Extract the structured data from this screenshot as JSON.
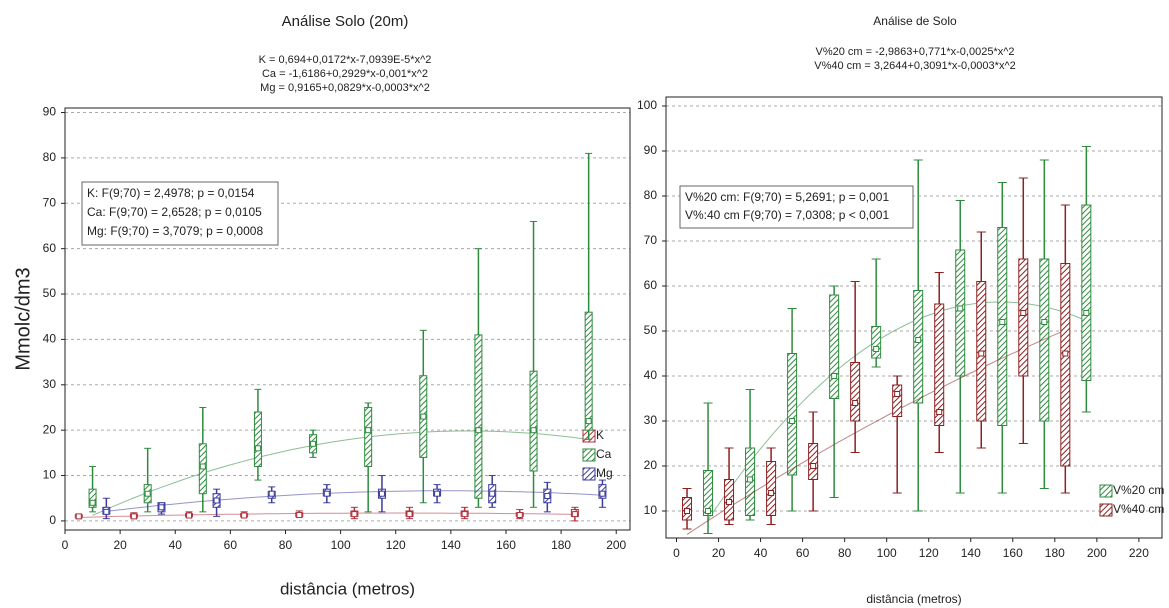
{
  "chart_data": [
    {
      "type": "box",
      "title": "Análise Solo (20m)",
      "subtitle": [
        "K = 0,694+0,0172*x-7,0939E-5*x^2",
        "Ca = -1,6186+0,2929*x-0,001*x^2",
        "Mg = 0,9165+0,0829*x-0,0003*x^2"
      ],
      "annotations": [
        "K:  F(9;70) = 2,4978; p = 0,0154",
        "Ca:  F(9;70) = 2,6528; p = 0,0105",
        "Mg:  F(9;70) = 3,7079; p = 0,0008"
      ],
      "x_label": "distância (metros)",
      "y_label": "Mmolc/dm3",
      "xlim": [
        0,
        205
      ],
      "xticks": [
        0,
        20,
        40,
        60,
        80,
        100,
        120,
        140,
        160,
        180,
        200
      ],
      "ylim": [
        -2,
        91
      ],
      "yticks": [
        0,
        10,
        20,
        30,
        40,
        50,
        60,
        70,
        80,
        90
      ],
      "grid": true,
      "series": [
        {
          "name": "K",
          "color": "#b0303c",
          "fit": [
            0.694,
            0.0172,
            -7.0939e-05
          ],
          "x": [
            5,
            25,
            45,
            65,
            85,
            105,
            125,
            145,
            165,
            185
          ],
          "median": [
            1,
            1,
            1.2,
            1.2,
            1.3,
            1.5,
            1.5,
            1.5,
            1.3,
            1.5
          ],
          "q1": [
            0.8,
            0.8,
            1,
            1,
            1,
            1,
            1,
            1,
            1,
            1
          ],
          "q3": [
            1.3,
            1.5,
            1.6,
            1.6,
            1.8,
            2.2,
            2.2,
            2.2,
            1.8,
            2.5
          ],
          "min": [
            0.5,
            0.5,
            0.7,
            0.8,
            0.8,
            0.5,
            0.5,
            0.5,
            0.5,
            0
          ],
          "max": [
            1.5,
            1.8,
            2,
            2,
            2.2,
            3,
            3,
            3,
            2.5,
            3
          ]
        },
        {
          "name": "Ca",
          "color": "#2e8b3e",
          "fit": [
            -1.6186,
            0.2929,
            -0.001
          ],
          "x": [
            10,
            30,
            50,
            70,
            90,
            110,
            130,
            150,
            170,
            190
          ],
          "median": [
            4,
            6,
            12,
            16,
            17,
            20,
            23,
            20,
            20,
            22
          ],
          "q1": [
            3,
            4,
            6,
            12,
            15,
            12,
            14,
            5,
            11,
            20
          ],
          "q3": [
            7,
            8,
            17,
            24,
            19,
            25,
            32,
            41,
            33,
            46
          ],
          "min": [
            2,
            2,
            2,
            9,
            14,
            2,
            4,
            3,
            3,
            18
          ],
          "max": [
            12,
            16,
            25,
            29,
            20,
            26,
            42,
            60,
            66,
            81
          ]
        },
        {
          "name": "Mg",
          "color": "#3c3c9c",
          "fit": [
            0.9165,
            0.0829,
            -0.0003
          ],
          "x": [
            15,
            35,
            55,
            75,
            95,
            115,
            135,
            155,
            175,
            195
          ],
          "median": [
            2,
            3,
            4.5,
            6,
            6,
            6,
            6,
            6,
            5.5,
            6
          ],
          "q1": [
            1.5,
            2,
            3,
            5,
            5.5,
            5,
            5.5,
            4,
            4,
            5
          ],
          "q3": [
            3,
            4,
            6,
            6.5,
            7,
            7,
            7,
            8,
            7,
            8
          ],
          "min": [
            0.5,
            1.5,
            1,
            4,
            4,
            2,
            4,
            3,
            2,
            3
          ],
          "max": [
            5,
            4,
            7,
            7.5,
            8,
            10,
            8,
            10,
            8.5,
            9
          ]
        }
      ]
    },
    {
      "type": "box",
      "title": "Análise de Solo",
      "subtitle": [
        "V%20 cm = -2,9863+0,771*x-0,0025*x^2",
        "V%40 cm = 3,2644+0,3091*x-0,0003*x^2"
      ],
      "annotations": [
        "V%20 cm:  F(9;70) = 5,2691; p = 0,001",
        "V%:40 cm F(9;70) = 7,0308; p < 0,001"
      ],
      "x_label": "distância (metros)",
      "xlim": [
        -5,
        231
      ],
      "xticks": [
        0,
        20,
        40,
        60,
        80,
        100,
        120,
        140,
        160,
        180,
        200,
        220
      ],
      "ylim": [
        4,
        102
      ],
      "yticks": [
        10,
        20,
        30,
        40,
        50,
        60,
        70,
        80,
        90,
        100
      ],
      "grid": true,
      "series": [
        {
          "name": "V%20 cm",
          "color": "#2e8b3e",
          "fit": [
            -2.9863,
            0.771,
            -0.0025
          ],
          "x": [
            15,
            35,
            55,
            75,
            95,
            115,
            135,
            155,
            175,
            195
          ],
          "median": [
            10,
            17,
            30,
            40,
            46,
            48,
            55,
            52,
            52,
            54
          ],
          "q1": [
            9,
            9,
            18,
            35,
            44,
            34,
            40,
            29,
            30,
            39
          ],
          "q3": [
            19,
            24,
            45,
            58,
            51,
            59,
            68,
            73,
            66,
            78
          ],
          "min": [
            5,
            8,
            10,
            13,
            42,
            10,
            14,
            14,
            15,
            32
          ],
          "max": [
            34,
            37,
            55,
            60,
            66,
            88,
            79,
            83,
            88,
            91
          ]
        },
        {
          "name": "V%40 cm",
          "color": "#8b2020",
          "fit": [
            3.2644,
            0.3091,
            -0.0003
          ],
          "x": [
            5,
            25,
            45,
            65,
            85,
            105,
            125,
            145,
            165,
            185
          ],
          "median": [
            10,
            12,
            14,
            20,
            34,
            36,
            32,
            45,
            54,
            45
          ],
          "q1": [
            8,
            8,
            9,
            17,
            30,
            31,
            29,
            30,
            40,
            20
          ],
          "q3": [
            13,
            17,
            21,
            25,
            43,
            38,
            56,
            61,
            66,
            65
          ],
          "min": [
            6,
            7,
            7,
            10,
            23,
            14,
            23,
            24,
            25,
            14
          ],
          "max": [
            15,
            24,
            24,
            32,
            61,
            40,
            63,
            72,
            84,
            78
          ]
        }
      ]
    }
  ]
}
